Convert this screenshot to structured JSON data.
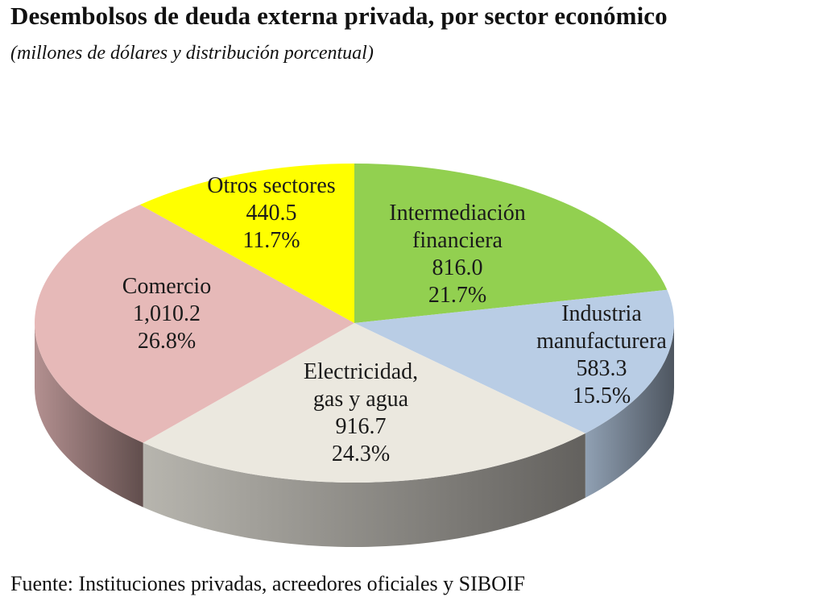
{
  "title": "Desembolsos de deuda externa privada, por sector económico",
  "subtitle": "(millones de dólares y distribución porcentual)",
  "source": "Fuente: Instituciones privadas, acreedores oficiales y SIBOIF",
  "chart_data": {
    "type": "pie",
    "style": "3d",
    "unit": "millones de dólares",
    "slices": [
      {
        "label": [
          "Intermediación",
          "financiera"
        ],
        "value": 816.0,
        "value_text": "816.0",
        "percent": 21.7,
        "percent_text": "21.7%",
        "color": "#92d050"
      },
      {
        "label": [
          "Industria",
          "manufacturera"
        ],
        "value": 583.3,
        "value_text": "583.3",
        "percent": 15.5,
        "percent_text": "15.5%",
        "color": "#b9cde5"
      },
      {
        "label": [
          "Electricidad,",
          "gas y agua"
        ],
        "value": 916.7,
        "value_text": "916.7",
        "percent": 24.3,
        "percent_text": "24.3%",
        "color": "#ebe8df"
      },
      {
        "label": [
          "Comercio"
        ],
        "value": 1010.2,
        "value_text": "1,010.2",
        "percent": 26.8,
        "percent_text": "26.8%",
        "color": "#e6b9b8"
      },
      {
        "label": [
          "Otros sectores"
        ],
        "value": 440.5,
        "value_text": "440.5",
        "percent": 11.7,
        "percent_text": "11.7%",
        "color": "#ffff00"
      }
    ]
  }
}
